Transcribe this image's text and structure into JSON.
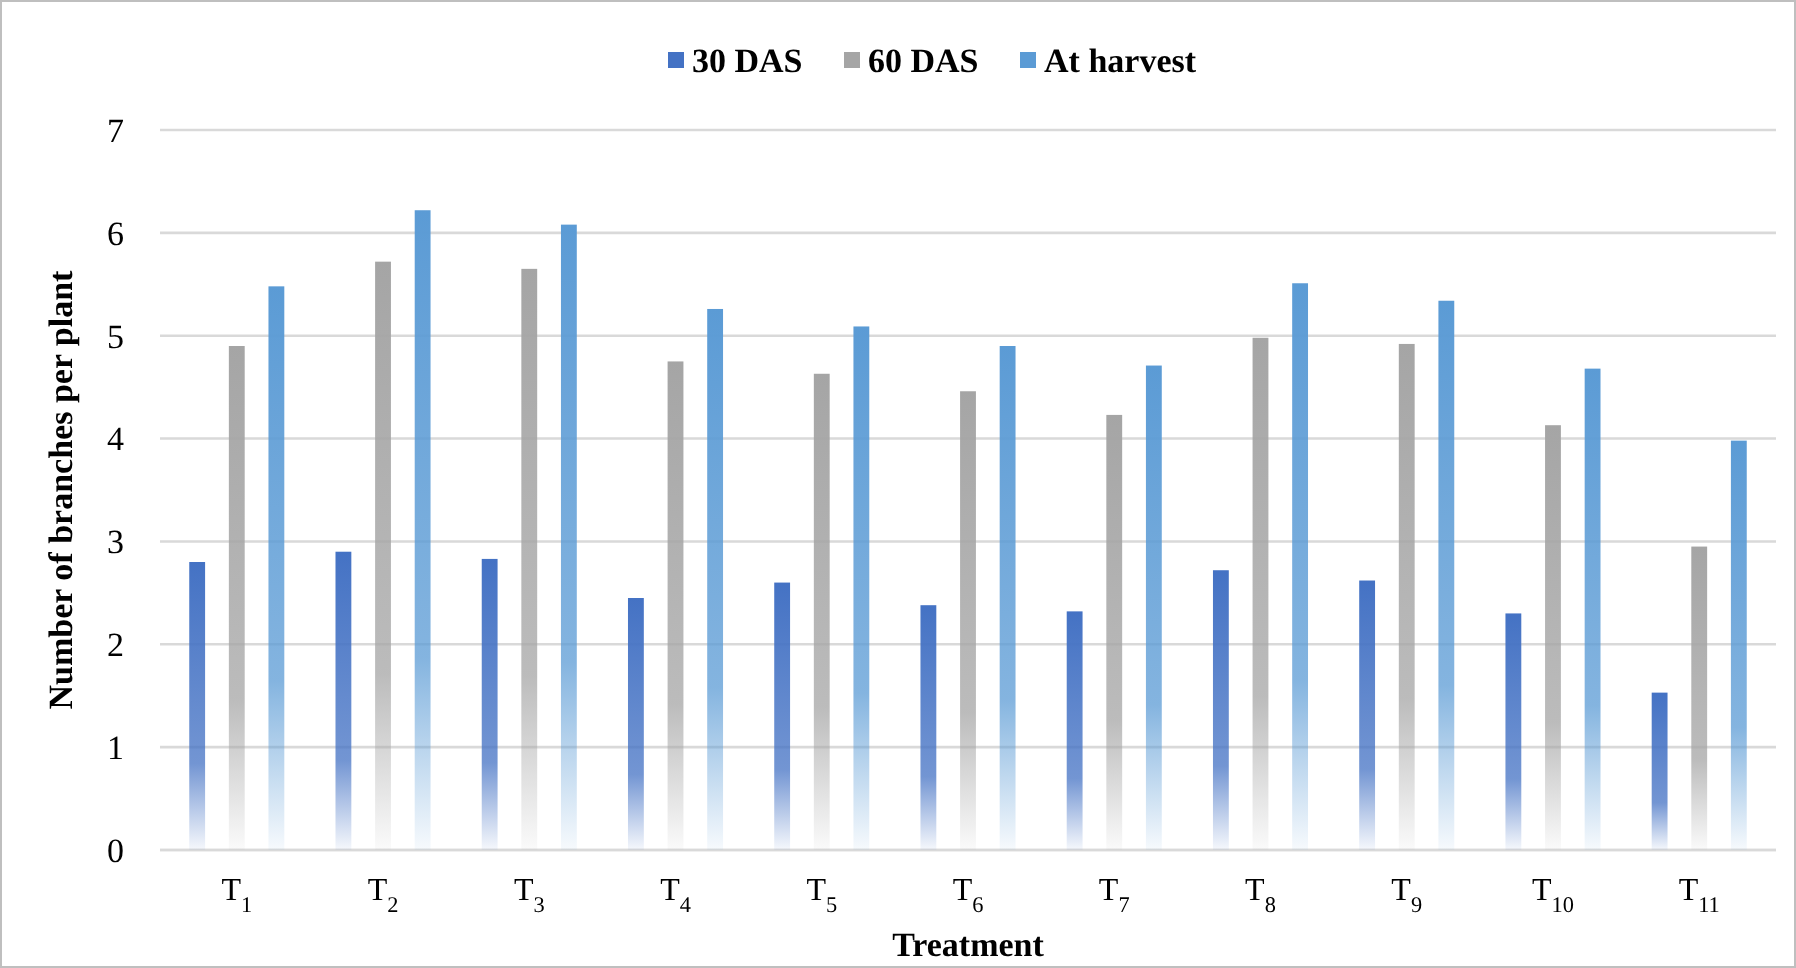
{
  "chart_data": {
    "type": "bar",
    "xlabel": "Treatment",
    "ylabel": "Number of branches per plant",
    "categories": [
      "T$_{1}$",
      "T$_{2}$",
      "T$_{3}$",
      "T$_{4}$",
      "T$_{5}$",
      "T$_{6}$",
      "T$_{7}$",
      "T$_{8}$",
      "T$_{9}$",
      "T$_{10}$",
      "T$_{11}$"
    ],
    "series": [
      {
        "name": "30 DAS",
        "color": "#4472c4",
        "values": [
          2.8,
          2.9,
          2.83,
          2.45,
          2.6,
          2.38,
          2.32,
          2.72,
          2.62,
          2.3,
          1.53
        ]
      },
      {
        "name": "60 DAS",
        "color": "#a5a5a5",
        "values": [
          4.9,
          5.72,
          5.65,
          4.75,
          4.63,
          4.46,
          4.23,
          4.98,
          4.92,
          4.13,
          2.95
        ]
      },
      {
        "name": "At harvest",
        "color": "#5b9bd5",
        "values": [
          5.48,
          6.22,
          6.08,
          5.26,
          5.09,
          4.9,
          4.71,
          5.51,
          5.34,
          4.68,
          3.98
        ]
      }
    ],
    "ylim": [
      0,
      7
    ],
    "yticks": [
      0,
      1,
      2,
      3,
      4,
      5,
      6,
      7
    ],
    "grid": "y",
    "legend": "top"
  }
}
